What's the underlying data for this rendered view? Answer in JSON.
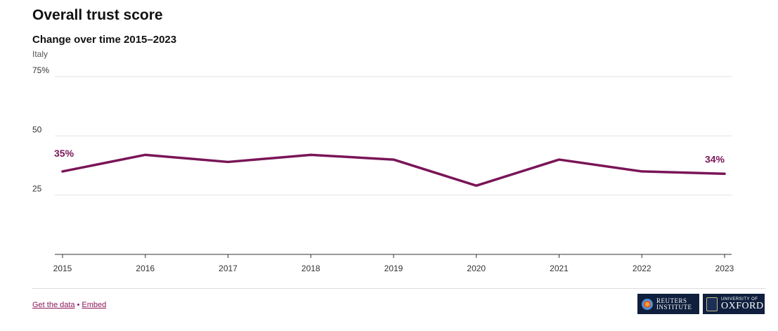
{
  "header": {
    "title": "Overall trust score",
    "subtitle": "Change over time 2015–2023",
    "region": "Italy"
  },
  "chart_data": {
    "type": "line",
    "x": [
      "2015",
      "2016",
      "2017",
      "2018",
      "2019",
      "2020",
      "2021",
      "2022",
      "2023"
    ],
    "series": [
      {
        "values": [
          35,
          42,
          39,
          42,
          40,
          29,
          40,
          35,
          34
        ]
      }
    ],
    "ylim": [
      0,
      75
    ],
    "yticks": [
      {
        "value": 25,
        "label": "25"
      },
      {
        "value": 50,
        "label": "50"
      },
      {
        "value": 75,
        "label": "75%"
      }
    ],
    "end_labels": {
      "start": "35%",
      "end": "34%"
    },
    "grid": true,
    "line_color": "#7a1557"
  },
  "footer": {
    "get_data": "Get the data",
    "separator": "•",
    "embed": "Embed",
    "logo_reuters": [
      "REUTERS",
      "INSTITUTE"
    ],
    "logo_oxford": [
      "UNIVERSITY OF",
      "OXFORD"
    ]
  }
}
